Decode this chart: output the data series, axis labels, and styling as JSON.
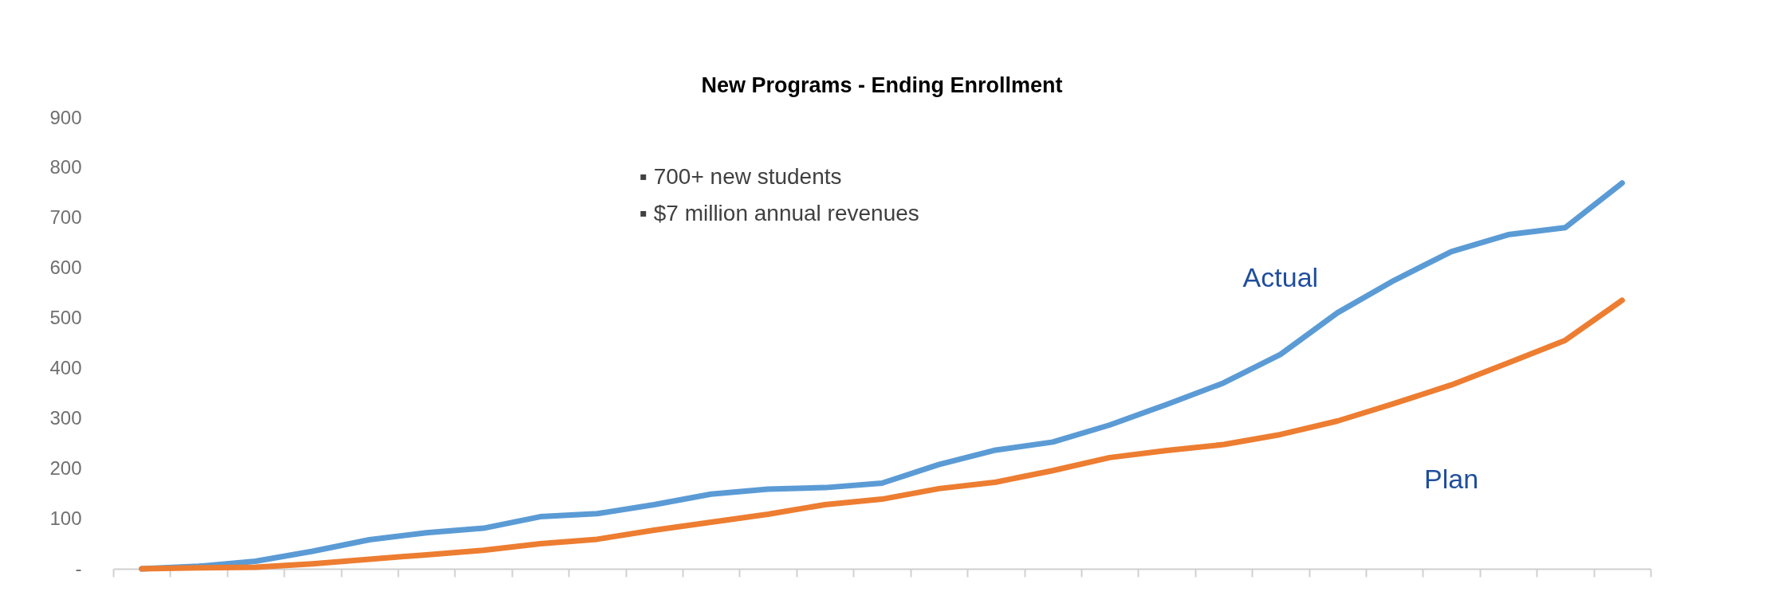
{
  "chart_data": {
    "type": "line",
    "title": "New Programs - Ending Enrollment",
    "categories": [
      null,
      null,
      null,
      null,
      null,
      null,
      null,
      null,
      null,
      null,
      null,
      null,
      null,
      null,
      null,
      null,
      null,
      null,
      null,
      null,
      null,
      null,
      null,
      null,
      null,
      null,
      null
    ],
    "series": [
      {
        "name": "Actual",
        "color": "#5b9bd5",
        "values": [
          0,
          5,
          15,
          35,
          58,
          72,
          81,
          104,
          110,
          128,
          149,
          159,
          162,
          171,
          208,
          237,
          253,
          287,
          328,
          371,
          428,
          511,
          576,
          633,
          667,
          681,
          770
        ]
      },
      {
        "name": "Plan",
        "color": "#ed7d31",
        "values": [
          0,
          2,
          3,
          10,
          19,
          28,
          37,
          50,
          59,
          77,
          93,
          109,
          128,
          139,
          160,
          173,
          196,
          222,
          236,
          248,
          268,
          295,
          330,
          367,
          411,
          456,
          536
        ]
      }
    ],
    "ylim": [
      0,
      900
    ],
    "yticks": [
      {
        "value": 0,
        "label": "-"
      },
      100,
      200,
      300,
      400,
      500,
      600,
      700,
      800,
      900
    ],
    "annotations": [
      "▪   700+ new students",
      "▪   $7 million annual revenues"
    ],
    "marker": "none",
    "line_style": "solid"
  }
}
